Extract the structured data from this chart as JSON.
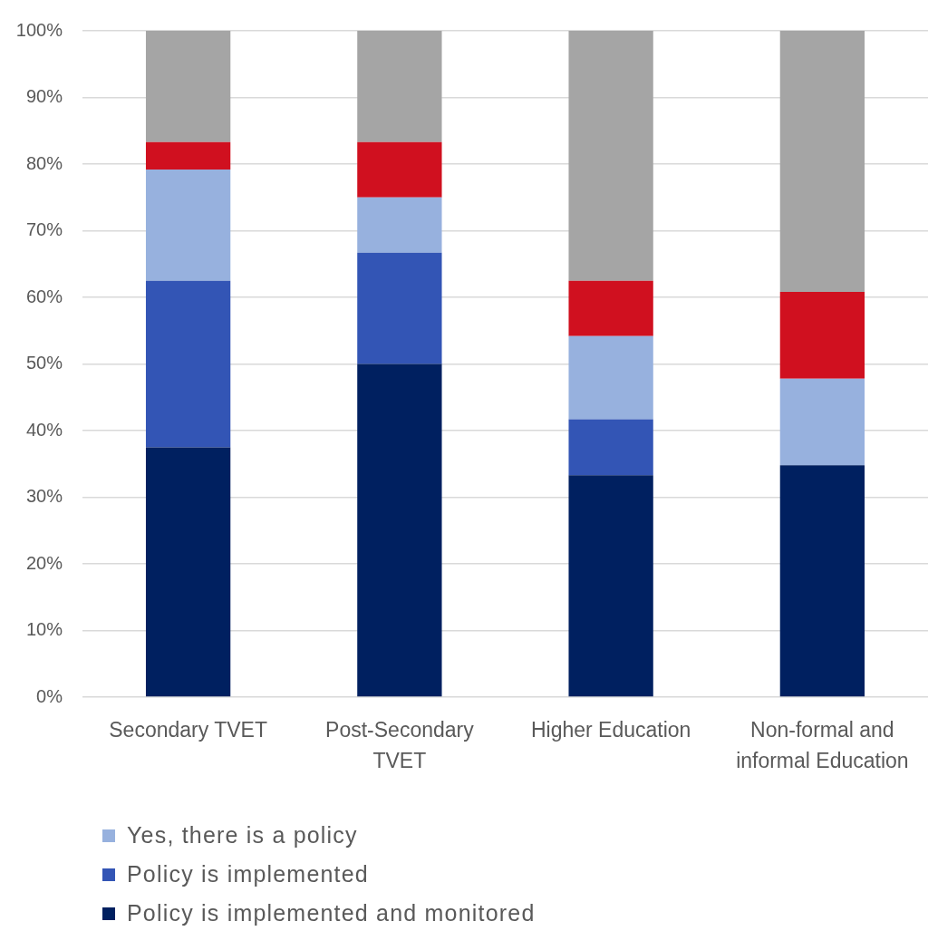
{
  "chart_data": {
    "type": "bar",
    "categories": [
      "Secondary TVET",
      "Post-Secondary TVET",
      "Higher Education",
      "Non-formal and informal Education"
    ],
    "series": [
      {
        "name": "Policy is implemented and monitored",
        "color": "#002060",
        "values": [
          37.5,
          50,
          33.3,
          34.8
        ]
      },
      {
        "name": "Policy is implemented",
        "color": "#3355b5",
        "values": [
          25,
          16.7,
          8.4,
          0
        ]
      },
      {
        "name": "Yes, there is a policy",
        "color": "#97b1de",
        "values": [
          16.7,
          8.3,
          12.5,
          13.0
        ]
      },
      {
        "color": "#d0101f",
        "values": [
          4.1,
          8.3,
          8.3,
          13.0
        ]
      },
      {
        "color": "#a5a5a5",
        "values": [
          16.7,
          16.7,
          37.5,
          39.2
        ]
      }
    ],
    "stacked": true,
    "ylim": [
      0,
      100
    ],
    "yticks": [
      {
        "value": 0,
        "label": "0%"
      },
      {
        "value": 10,
        "label": "10%"
      },
      {
        "value": 20,
        "label": "20%"
      },
      {
        "value": 30,
        "label": "30%"
      },
      {
        "value": 40,
        "label": "40%"
      },
      {
        "value": 50,
        "label": "50%"
      },
      {
        "value": 60,
        "label": "60%"
      },
      {
        "value": 70,
        "label": "70%"
      },
      {
        "value": 80,
        "label": "80%"
      },
      {
        "value": 90,
        "label": "90%"
      },
      {
        "value": 100,
        "label": "100%"
      }
    ],
    "grid": "y",
    "legend": "bottom"
  }
}
